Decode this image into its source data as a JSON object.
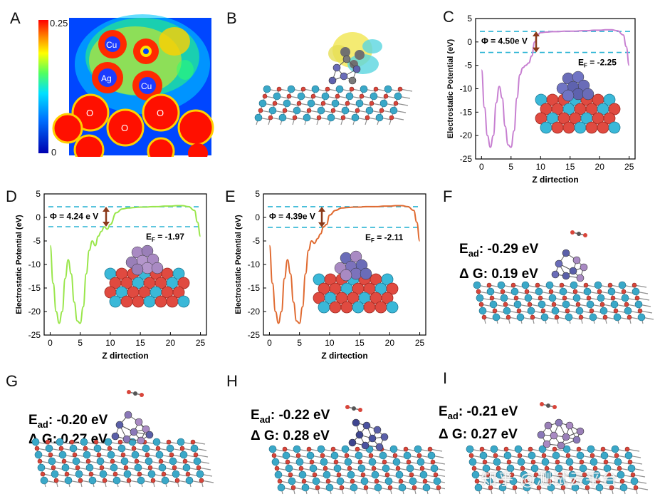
{
  "panels": {
    "A": {
      "label": "A",
      "colorbar_max": "0.25",
      "colorbar_min": "0",
      "atoms": [
        "Cu",
        "Ag",
        "Cu",
        "O",
        "O",
        "O"
      ]
    },
    "B": {
      "label": "B"
    },
    "C": {
      "label": "C",
      "phi": "Φ = 4.50e V",
      "ef_main": "E",
      "ef_sub": "F",
      "ef_val": " = -2.25"
    },
    "D": {
      "label": "D",
      "phi": "Φ = 4.24 e V",
      "ef_main": "E",
      "ef_sub": "F",
      "ef_val": " = -1.97"
    },
    "E": {
      "label": "E",
      "phi": "Φ = 4.39e V",
      "ef_main": "E",
      "ef_sub": "F",
      "ef_val": " = -2.11"
    },
    "F": {
      "label": "F",
      "ead_main": "E",
      "ead_sub": "ad",
      "ead_val": ": -0.29 eV",
      "dg": "Δ G: 0.19 eV"
    },
    "G": {
      "label": "G",
      "ead_main": "E",
      "ead_sub": "ad",
      "ead_val": ": -0.20 eV",
      "dg": "Δ G: 0.27 eV"
    },
    "H": {
      "label": "H",
      "ead_main": "E",
      "ead_sub": "ad",
      "ead_val": ": -0.22 eV",
      "dg": "Δ G: 0.28 eV"
    },
    "I": {
      "label": "I",
      "ead_main": "E",
      "ead_sub": "ad",
      "ead_val": ": -0.21 eV",
      "dg": "Δ G: 0.27 eV"
    }
  },
  "axes": {
    "ylabel": "Electrostatic Potential (eV)",
    "xlabel": "Z dirtection",
    "xticks": [
      "0",
      "5",
      "10",
      "15",
      "20",
      "25"
    ],
    "yticks": [
      "5",
      "0",
      "-5",
      "-10",
      "-15",
      "-20",
      "-25"
    ]
  },
  "watermark": "知乎 @测试云平台",
  "chart_data": [
    {
      "type": "line",
      "panel": "C",
      "color": "#c77fd1",
      "xlabel": "Z dirtection",
      "ylabel": "Electrostatic Potential (eV)",
      "xlim": [
        -1,
        26
      ],
      "ylim": [
        -25,
        5
      ],
      "x": [
        0,
        0.5,
        1,
        1.5,
        2,
        2.5,
        3,
        3.5,
        4,
        4.5,
        5,
        5.5,
        6,
        6.5,
        7,
        7.5,
        8,
        8.5,
        9,
        9.5,
        10,
        11,
        12,
        13,
        14,
        15,
        16,
        17,
        18,
        19,
        20,
        21,
        22,
        23,
        24,
        24.5,
        25
      ],
      "y": [
        -6,
        -14,
        -20,
        -22.5,
        -20,
        -13,
        -9.5,
        -12,
        -18,
        -22,
        -22.5,
        -19,
        -12,
        -7,
        -5.5,
        -5,
        -4.5,
        -3,
        0,
        1.5,
        2,
        2.1,
        2.2,
        2.2,
        2.3,
        2.3,
        2.3,
        2.4,
        2.4,
        2.5,
        2.5,
        2.6,
        2.6,
        2.4,
        1.5,
        -1,
        -5
      ],
      "annotations": [
        "Φ = 4.50e V",
        "EF = -2.25"
      ],
      "reference_lines": [
        2.25,
        -2.25
      ]
    },
    {
      "type": "line",
      "panel": "D",
      "color": "#99e64a",
      "xlabel": "Z dirtection",
      "ylabel": "Electrostatic Potential (eV)",
      "xlim": [
        -1,
        26
      ],
      "ylim": [
        -25,
        5
      ],
      "x": [
        0,
        0.5,
        1,
        1.5,
        2,
        2.5,
        3,
        3.5,
        4,
        4.5,
        5,
        5.5,
        6,
        6.5,
        7,
        7.5,
        8,
        8.5,
        9,
        9.5,
        10,
        11,
        12,
        13,
        14,
        15,
        16,
        17,
        18,
        19,
        20,
        21,
        22,
        23,
        24,
        24.5,
        25
      ],
      "y": [
        -6,
        -14,
        -20,
        -22.5,
        -20,
        -13,
        -9,
        -12,
        -18,
        -22,
        -22.5,
        -19,
        -12,
        -7,
        -5,
        -6,
        -4,
        -3,
        -2,
        -2.5,
        -1.5,
        1,
        1.8,
        2,
        2.1,
        2.2,
        2.2,
        2.3,
        2.3,
        2.4,
        2.4,
        2.5,
        2.5,
        2.3,
        1.5,
        -1,
        -4
      ],
      "annotations": [
        "Φ = 4.24 e V",
        "EF = -1.97"
      ],
      "reference_lines": [
        2.27,
        -1.97
      ]
    },
    {
      "type": "line",
      "panel": "E",
      "color": "#e06a30",
      "xlabel": "Z dirtection",
      "ylabel": "Electrostatic Potential (eV)",
      "xlim": [
        -1,
        26
      ],
      "ylim": [
        -25,
        5
      ],
      "x": [
        0,
        0.5,
        1,
        1.5,
        2,
        2.5,
        3,
        3.5,
        4,
        4.5,
        5,
        5.5,
        6,
        6.5,
        7,
        7.5,
        8,
        8.5,
        9,
        9.5,
        10,
        11,
        12,
        13,
        14,
        15,
        16,
        17,
        18,
        19,
        20,
        21,
        22,
        23,
        24,
        24.5,
        25
      ],
      "y": [
        -6,
        -14,
        -20,
        -22.5,
        -20,
        -13,
        -9,
        -12,
        -18,
        -22,
        -22.5,
        -19,
        -12,
        -7,
        -5,
        -5.5,
        -4.5,
        -3.5,
        -2,
        -1.5,
        0.5,
        1.5,
        2,
        2.1,
        2.2,
        2.2,
        2.3,
        2.3,
        2.3,
        2.4,
        2.4,
        2.5,
        2.5,
        2.3,
        1.5,
        -1,
        -5
      ],
      "annotations": [
        "Φ = 4.39e V",
        "EF = -2.11"
      ],
      "reference_lines": [
        2.28,
        -2.11
      ]
    }
  ]
}
